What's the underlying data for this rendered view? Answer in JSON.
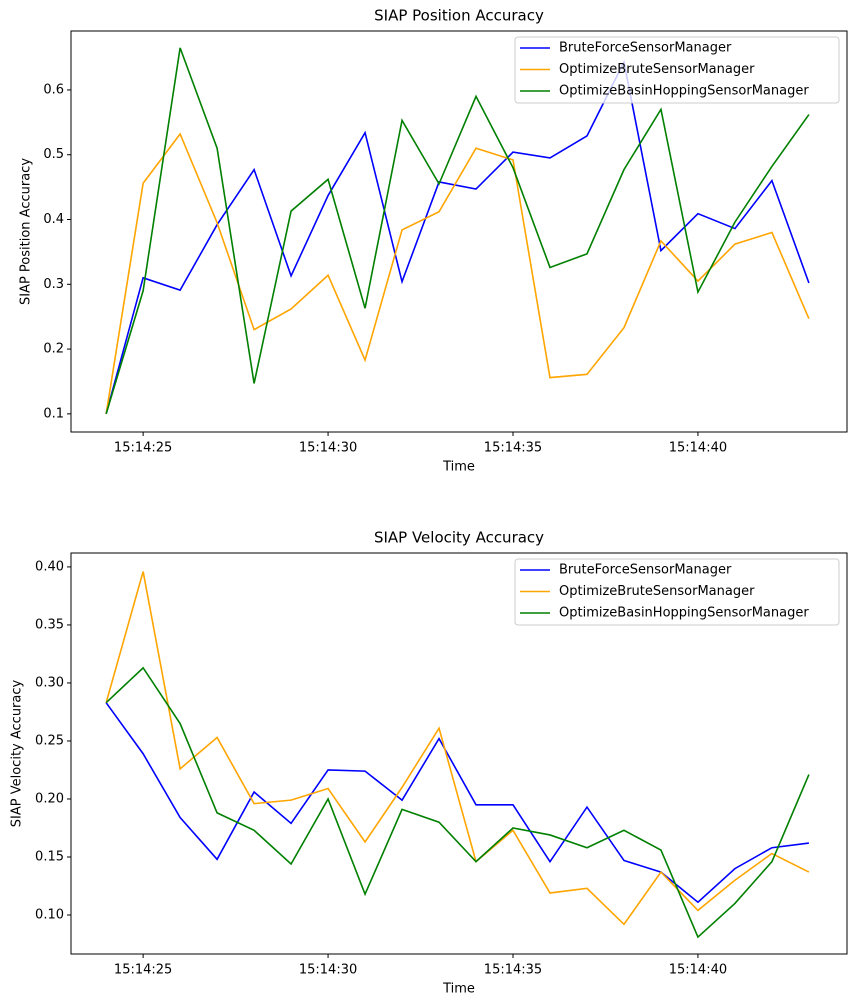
{
  "chart_data": [
    {
      "type": "line",
      "title": "SIAP Position Accuracy",
      "x_label": "Time",
      "y_label": "SIAP Position Accuracy",
      "x": [
        "15:14:24",
        "15:14:25",
        "15:14:26",
        "15:14:27",
        "15:14:28",
        "15:14:29",
        "15:14:30",
        "15:14:31",
        "15:14:32",
        "15:14:33",
        "15:14:34",
        "15:14:35",
        "15:14:36",
        "15:14:37",
        "15:14:38",
        "15:14:39",
        "15:14:40",
        "15:14:41",
        "15:14:42",
        "15:14:43"
      ],
      "xlim": [
        "15:14:23.05",
        "15:14:44.03"
      ],
      "xticks": [
        "15:14:25",
        "15:14:30",
        "15:14:35",
        "15:14:40"
      ],
      "ylim": [
        0.072,
        0.691
      ],
      "yticks": [
        0.1,
        0.2,
        0.3,
        0.4,
        0.5,
        0.6
      ],
      "legend": "upper right",
      "series": [
        {
          "name": "BruteForceSensorManager",
          "color": "#0000ff",
          "values": [
            0.1,
            0.31,
            0.291,
            0.392,
            0.477,
            0.313,
            0.437,
            0.534,
            0.304,
            0.458,
            0.447,
            0.504,
            0.495,
            0.529,
            0.643,
            0.352,
            0.409,
            0.386,
            0.46,
            0.302
          ]
        },
        {
          "name": "OptimizeBruteSensorManager",
          "color": "#ffa500",
          "values": [
            0.1,
            0.456,
            0.532,
            0.395,
            0.23,
            0.262,
            0.314,
            0.183,
            0.384,
            0.412,
            0.51,
            0.492,
            0.156,
            0.161,
            0.233,
            0.367,
            0.305,
            0.362,
            0.38,
            0.247
          ]
        },
        {
          "name": "OptimizeBasinHoppingSensorManager",
          "color": "#008000",
          "values": [
            0.1,
            0.29,
            0.665,
            0.51,
            0.147,
            0.413,
            0.462,
            0.263,
            0.553,
            0.455,
            0.59,
            0.48,
            0.326,
            0.347,
            0.477,
            0.57,
            0.288,
            0.396,
            0.482,
            0.562
          ]
        }
      ]
    },
    {
      "type": "line",
      "title": "SIAP Velocity Accuracy",
      "x_label": "Time",
      "y_label": "SIAP Velocity Accuracy",
      "x": [
        "15:14:24",
        "15:14:25",
        "15:14:26",
        "15:14:27",
        "15:14:28",
        "15:14:29",
        "15:14:30",
        "15:14:31",
        "15:14:32",
        "15:14:33",
        "15:14:34",
        "15:14:35",
        "15:14:36",
        "15:14:37",
        "15:14:38",
        "15:14:39",
        "15:14:40",
        "15:14:41",
        "15:14:42",
        "15:14:43"
      ],
      "xlim": [
        "15:14:23.05",
        "15:14:44.03"
      ],
      "xticks": [
        "15:14:25",
        "15:14:30",
        "15:14:35",
        "15:14:40"
      ],
      "ylim": [
        0.0664,
        0.412
      ],
      "yticks": [
        {
          "value": 0.1,
          "label": "0.10"
        },
        {
          "value": 0.15,
          "label": "0.15"
        },
        {
          "value": 0.2,
          "label": "0.20"
        },
        {
          "value": 0.25,
          "label": "0.25"
        },
        {
          "value": 0.3,
          "label": "0.30"
        },
        {
          "value": 0.35,
          "label": "0.35"
        },
        {
          "value": 0.4,
          "label": "0.40"
        }
      ],
      "legend": "upper right",
      "series": [
        {
          "name": "BruteForceSensorManager",
          "color": "#0000ff",
          "values": [
            0.283,
            0.239,
            0.184,
            0.148,
            0.206,
            0.179,
            0.225,
            0.224,
            0.199,
            0.252,
            0.195,
            0.195,
            0.146,
            0.193,
            0.147,
            0.137,
            0.111,
            0.14,
            0.158,
            0.162
          ]
        },
        {
          "name": "OptimizeBruteSensorManager",
          "color": "#ffa500",
          "values": [
            0.283,
            0.396,
            0.226,
            0.253,
            0.196,
            0.199,
            0.209,
            0.163,
            0.21,
            0.261,
            0.146,
            0.173,
            0.119,
            0.123,
            0.092,
            0.137,
            0.104,
            0.13,
            0.153,
            0.137
          ]
        },
        {
          "name": "OptimizeBasinHoppingSensorManager",
          "color": "#008000",
          "values": [
            0.283,
            0.313,
            0.265,
            0.188,
            0.173,
            0.144,
            0.2,
            0.118,
            0.191,
            0.18,
            0.146,
            0.175,
            0.169,
            0.158,
            0.173,
            0.156,
            0.081,
            0.11,
            0.146,
            0.221
          ]
        }
      ]
    }
  ]
}
